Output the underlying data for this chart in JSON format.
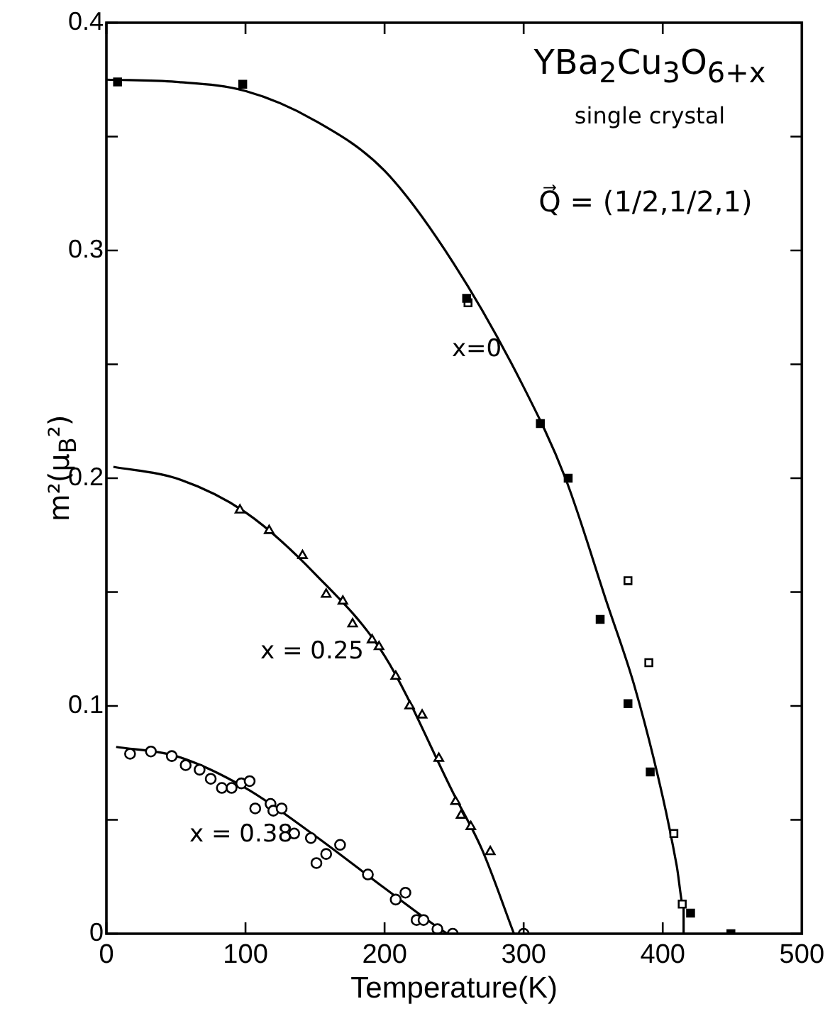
{
  "chart_data": {
    "type": "scatter",
    "xlabel": "Temperature(K)",
    "ylabel": "m²(μ$_{B}$²)",
    "xlim": [
      0,
      500
    ],
    "xticks": [
      0,
      100,
      200,
      300,
      400,
      500
    ],
    "ylim": [
      0,
      0.4
    ],
    "yticks": [
      0,
      {
        "value": 0.05,
        "label": null
      },
      0.1,
      {
        "value": 0.15,
        "label": null
      },
      0.2,
      {
        "value": 0.25,
        "label": null
      },
      0.3,
      {
        "value": 0.35,
        "label": null
      },
      0.4
    ],
    "grid": false,
    "legend": false,
    "annotations": [
      "YBa$_{2}$Cu$_{3}$O$_{6+x}$",
      "single crystal",
      "Q⃗ = (1/2,1/2,1)",
      "x=0",
      "x = 0.25",
      "x = 0.38"
    ],
    "series": [
      {
        "marker": "square",
        "color": "#000000",
        "x": [
          8,
          98,
          259,
          312,
          332,
          355,
          375,
          391,
          420,
          449
        ],
        "values": [
          0.374,
          0.373,
          0.279,
          0.224,
          0.2,
          0.138,
          0.101,
          0.071,
          0.009,
          0
        ]
      },
      {
        "marker": "square",
        "color": "#ffffff",
        "x": [
          260,
          375,
          390,
          408,
          414
        ],
        "values": [
          0.277,
          0.155,
          0.119,
          0.044,
          0.013
        ]
      },
      {
        "marker": "triangle",
        "color": "#ffffff",
        "x": [
          96,
          117,
          141,
          158,
          170,
          177,
          191,
          196,
          208,
          218,
          227,
          239,
          251,
          255,
          262,
          276
        ],
        "values": [
          0.186,
          0.177,
          0.166,
          0.149,
          0.146,
          0.136,
          0.129,
          0.126,
          0.113,
          0.1,
          0.096,
          0.077,
          0.058,
          0.052,
          0.047,
          0.036
        ]
      },
      {
        "marker": "circle",
        "color": "#ffffff",
        "x": [
          17,
          32,
          47,
          57,
          67,
          75,
          83,
          90,
          97,
          103,
          107,
          118,
          120,
          126,
          135,
          147,
          151,
          158,
          168,
          188,
          208,
          215,
          223,
          228,
          238,
          249,
          300
        ],
        "values": [
          0.079,
          0.08,
          0.078,
          0.074,
          0.072,
          0.068,
          0.064,
          0.064,
          0.066,
          0.067,
          0.055,
          0.057,
          0.054,
          0.055,
          0.044,
          0.042,
          0.031,
          0.035,
          0.039,
          0.026,
          0.015,
          0.018,
          0.006,
          0.006,
          0.002,
          0,
          0
        ]
      },
      {
        "type": "line",
        "marker": "none",
        "color": "#000000",
        "x": [
          0,
          50,
          100,
          150,
          200,
          250,
          300,
          330,
          360,
          380,
          400,
          410,
          415,
          415
        ],
        "values": [
          0.375,
          0.374,
          0.37,
          0.357,
          0.335,
          0.294,
          0.24,
          0.2,
          0.145,
          0.108,
          0.06,
          0.03,
          0.012,
          0
        ]
      },
      {
        "type": "line",
        "marker": "none",
        "color": "#000000",
        "x": [
          5,
          50,
          100,
          150,
          200,
          250,
          270,
          293
        ],
        "values": [
          0.205,
          0.2,
          0.185,
          0.158,
          0.122,
          0.061,
          0.037,
          0
        ]
      },
      {
        "type": "line",
        "marker": "none",
        "color": "#000000",
        "x": [
          7,
          50,
          100,
          150,
          200,
          240,
          245
        ],
        "values": [
          0.082,
          0.078,
          0.064,
          0.043,
          0.02,
          0.002,
          0
        ]
      }
    ]
  }
}
